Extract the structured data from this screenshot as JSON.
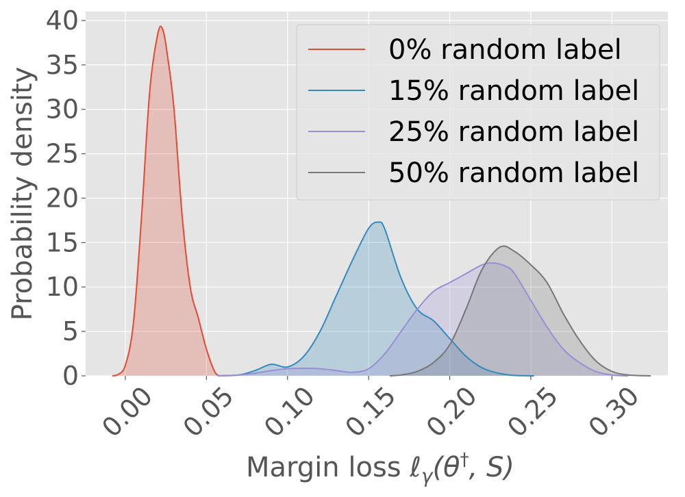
{
  "chart_data": {
    "type": "area",
    "xlabel": "Margin loss ℓ",
    "xlabel_sub": "γ",
    "xlabel_paren_open": "(θ",
    "xlabel_sup": "†",
    "xlabel_rest": ", S)",
    "ylabel": "Probability density",
    "xlim": [
      -0.0245,
      0.3345
    ],
    "ylim": [
      0,
      41
    ],
    "xticks": [
      0.0,
      0.05,
      0.1,
      0.15,
      0.2,
      0.25,
      0.3
    ],
    "xtick_labels": [
      "0.00",
      "0.05",
      "0.10",
      "0.15",
      "0.20",
      "0.25",
      "0.30"
    ],
    "yticks": [
      0,
      5,
      10,
      15,
      20,
      25,
      30,
      35,
      40
    ],
    "ytick_labels": [
      "0",
      "5",
      "10",
      "15",
      "20",
      "25",
      "30",
      "35",
      "40"
    ],
    "grid": true,
    "legend_position": "top-right",
    "series": [
      {
        "name": "0% random label",
        "color": "#E24A33",
        "x": [
          -0.008,
          -0.005,
          0.0,
          0.005,
          0.01,
          0.015,
          0.02,
          0.023,
          0.026,
          0.03,
          0.035,
          0.04,
          0.045,
          0.05,
          0.055,
          0.058
        ],
        "y": [
          0,
          0.1,
          1.2,
          6,
          18,
          32,
          38.5,
          39,
          36,
          30,
          18,
          10,
          6.5,
          3,
          0.5,
          0
        ]
      },
      {
        "name": "15% random label",
        "color": "#348ABD",
        "x": [
          0.057,
          0.07,
          0.08,
          0.09,
          0.1,
          0.11,
          0.12,
          0.13,
          0.14,
          0.15,
          0.156,
          0.16,
          0.17,
          0.18,
          0.19,
          0.2,
          0.21,
          0.22,
          0.23,
          0.24,
          0.252
        ],
        "y": [
          0,
          0.1,
          0.6,
          1.3,
          1.0,
          2.2,
          5,
          9,
          13,
          16.6,
          17.3,
          16.5,
          11,
          7.5,
          6.2,
          4.2,
          2.2,
          0.9,
          0.3,
          0.05,
          0
        ]
      },
      {
        "name": "25% random label",
        "color": "#988ED5",
        "x": [
          0.057,
          0.07,
          0.08,
          0.09,
          0.1,
          0.11,
          0.12,
          0.13,
          0.14,
          0.15,
          0.16,
          0.17,
          0.18,
          0.19,
          0.2,
          0.21,
          0.22,
          0.227,
          0.235,
          0.24,
          0.25,
          0.26,
          0.27,
          0.28,
          0.29,
          0.3,
          0.31
        ],
        "y": [
          0,
          0.1,
          0.3,
          0.6,
          0.8,
          0.85,
          0.8,
          0.6,
          0.4,
          0.8,
          2.5,
          5,
          7.5,
          9.5,
          10.5,
          11.5,
          12.5,
          12.7,
          12.3,
          11.5,
          8.5,
          5.5,
          3,
          1.5,
          0.5,
          0.1,
          0
        ]
      },
      {
        "name": "50% random label",
        "color": "#777777",
        "x": [
          0.163,
          0.17,
          0.18,
          0.19,
          0.2,
          0.21,
          0.22,
          0.231,
          0.24,
          0.25,
          0.26,
          0.27,
          0.28,
          0.29,
          0.3,
          0.31,
          0.324
        ],
        "y": [
          0,
          0.1,
          0.5,
          1.5,
          3.5,
          7.5,
          12,
          14.5,
          14,
          12.5,
          10.5,
          7,
          4,
          1.7,
          0.5,
          0.1,
          0
        ]
      }
    ]
  }
}
